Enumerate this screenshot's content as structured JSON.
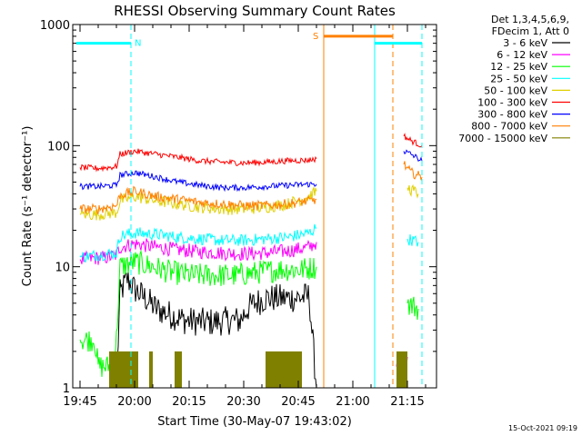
{
  "chart_data": {
    "type": "line",
    "title": "RHESSI Observing Summary Count Rates",
    "xlabel": "Start Time (30-May-07 19:43:02)",
    "ylabel": "Count Rate (s⁻¹ detector⁻¹)",
    "yscale": "log",
    "ylim": [
      1,
      1000
    ],
    "xlim": [
      "19:43",
      "21:23"
    ],
    "grid": false,
    "x_ticks": [
      "19:45",
      "20:00",
      "20:15",
      "20:30",
      "20:45",
      "21:00",
      "21:15"
    ],
    "y_ticks": [
      "1",
      "10",
      "100",
      "1000"
    ],
    "legend": {
      "placement": "right-outside",
      "header": [
        "Det 1,3,4,5,6,9,",
        "FDecim 1, Att 0"
      ],
      "entries": [
        {
          "label": "3 - 6 keV",
          "color": "#000000"
        },
        {
          "label": "6 - 12 keV",
          "color": "#ff00ff"
        },
        {
          "label": "12 - 25 keV",
          "color": "#00ff00"
        },
        {
          "label": "25 - 50 keV",
          "color": "#00ffff"
        },
        {
          "label": "50 - 100 keV",
          "color": "#e0d000"
        },
        {
          "label": "100 - 300 keV",
          "color": "#ff0000"
        },
        {
          "label": "300 - 800 keV",
          "color": "#0000ff"
        },
        {
          "label": "800 - 7000 keV",
          "color": "#ff8000"
        },
        {
          "label": "7000 - 15000 keV",
          "color": "#808000"
        }
      ]
    },
    "flags": [
      {
        "label": "N",
        "color": "#00ffff",
        "y": 700,
        "start": "19:44",
        "end": "19:59"
      },
      {
        "label": "S",
        "color": "#ff8000",
        "y": 800,
        "start": "20:52",
        "end": "21:11"
      },
      {
        "label": "",
        "color": "#00ffff",
        "y": 700,
        "start": "21:06",
        "end": "21:19"
      }
    ],
    "markers": [
      {
        "color": "#00ffff",
        "style": "dashed",
        "time": "19:59"
      },
      {
        "color": "#ff8000",
        "style": "solid",
        "time": "20:52"
      },
      {
        "color": "#00ffff",
        "style": "solid",
        "time": "21:06"
      },
      {
        "color": "#ff8000",
        "style": "dashed",
        "time": "21:11"
      },
      {
        "color": "#00ffff",
        "style": "dashed",
        "time": "21:19"
      }
    ],
    "series": [
      {
        "label": "3 - 6 keV",
        "color": "#000000",
        "noise": 0.12,
        "segments": [
          [
            [
              "19:55",
              1.0
            ],
            [
              "19:56",
              6.0
            ],
            [
              "19:58",
              8.0
            ],
            [
              "20:00",
              6.5
            ],
            [
              "20:03",
              5.5
            ],
            [
              "20:06",
              4.5
            ],
            [
              "20:10",
              4.0
            ],
            [
              "20:14",
              3.6
            ],
            [
              "20:18",
              3.5
            ],
            [
              "20:22",
              3.5
            ],
            [
              "20:26",
              3.6
            ],
            [
              "20:29",
              3.6
            ],
            [
              "20:31",
              4.5
            ],
            [
              "20:33",
              5.0
            ],
            [
              "20:36",
              5.5
            ],
            [
              "20:40",
              5.5
            ],
            [
              "20:44",
              5.5
            ],
            [
              "20:48",
              5.7
            ],
            [
              "20:50",
              1.0
            ]
          ]
        ]
      },
      {
        "label": "6 - 12 keV",
        "color": "#ff00ff",
        "noise": 0.06,
        "segments": [
          [
            [
              "19:45",
              11.5
            ],
            [
              "19:53",
              12.0
            ],
            [
              "19:55",
              12.5
            ],
            [
              "19:56",
              14.5
            ],
            [
              "20:00",
              15.5
            ],
            [
              "20:06",
              14.5
            ],
            [
              "20:12",
              13.8
            ],
            [
              "20:18",
              13.3
            ],
            [
              "20:24",
              13.0
            ],
            [
              "20:30",
              12.8
            ],
            [
              "20:36",
              13.0
            ],
            [
              "20:42",
              13.5
            ],
            [
              "20:48",
              14.5
            ],
            [
              "20:50",
              16.0
            ]
          ],
          [
            [
              "21:12",
              1.5
            ],
            [
              "21:15",
              1.8
            ]
          ]
        ]
      },
      {
        "label": "12 - 25 keV",
        "color": "#00ff00",
        "noise": 0.1,
        "segments": [
          [
            [
              "19:45",
              2.5
            ],
            [
              "19:49",
              2.5
            ],
            [
              "19:50",
              1.5
            ],
            [
              "19:54",
              1.5
            ],
            [
              "19:55",
              2.5
            ],
            [
              "19:56",
              10.0
            ],
            [
              "20:00",
              11.0
            ],
            [
              "20:05",
              10.0
            ],
            [
              "20:10",
              9.0
            ],
            [
              "20:16",
              8.5
            ],
            [
              "20:22",
              8.5
            ],
            [
              "20:28",
              8.5
            ],
            [
              "20:34",
              9.0
            ],
            [
              "20:40",
              9.5
            ],
            [
              "20:46",
              9.5
            ],
            [
              "20:50",
              10.0
            ]
          ],
          [
            [
              "21:15",
              5.0
            ],
            [
              "21:18",
              4.5
            ]
          ]
        ]
      },
      {
        "label": "25 - 50 keV",
        "color": "#00ffff",
        "noise": 0.05,
        "segments": [
          [
            [
              "19:45",
              12.0
            ],
            [
              "19:50",
              12.5
            ],
            [
              "19:55",
              13.0
            ],
            [
              "19:56",
              18.0
            ],
            [
              "20:00",
              19.0
            ],
            [
              "20:06",
              18.5
            ],
            [
              "20:12",
              17.5
            ],
            [
              "20:18",
              17.0
            ],
            [
              "20:24",
              16.5
            ],
            [
              "20:30",
              16.5
            ],
            [
              "20:36",
              17.0
            ],
            [
              "20:42",
              17.5
            ],
            [
              "20:48",
              19.0
            ],
            [
              "20:50",
              21.0
            ]
          ],
          [
            [
              "21:15",
              17.0
            ],
            [
              "21:18",
              16.0
            ]
          ]
        ]
      },
      {
        "label": "50 - 100 keV",
        "color": "#e0d000",
        "noise": 0.05,
        "segments": [
          [
            [
              "19:45",
              27.0
            ],
            [
              "19:50",
              27.0
            ],
            [
              "19:55",
              28.0
            ],
            [
              "19:56",
              35.0
            ],
            [
              "20:00",
              38.0
            ],
            [
              "20:06",
              35.0
            ],
            [
              "20:12",
              33.0
            ],
            [
              "20:18",
              31.0
            ],
            [
              "20:24",
              30.0
            ],
            [
              "20:30",
              30.0
            ],
            [
              "20:36",
              31.0
            ],
            [
              "20:42",
              33.0
            ],
            [
              "20:48",
              38.0
            ],
            [
              "20:50",
              42.0
            ]
          ],
          [
            [
              "21:15",
              45.0
            ],
            [
              "21:18",
              40.0
            ]
          ]
        ]
      },
      {
        "label": "100 - 300 keV",
        "color": "#ff0000",
        "noise": 0.025,
        "segments": [
          [
            [
              "19:45",
              66.0
            ],
            [
              "19:50",
              65.0
            ],
            [
              "19:55",
              67.0
            ],
            [
              "19:56",
              85.0
            ],
            [
              "20:00",
              90.0
            ],
            [
              "20:06",
              85.0
            ],
            [
              "20:12",
              80.0
            ],
            [
              "20:18",
              75.0
            ],
            [
              "20:24",
              73.0
            ],
            [
              "20:30",
              72.0
            ],
            [
              "20:36",
              73.0
            ],
            [
              "20:42",
              75.0
            ],
            [
              "20:48",
              76.0
            ],
            [
              "20:50",
              78.0
            ]
          ],
          [
            [
              "21:14",
              120.0
            ],
            [
              "21:16",
              110.0
            ],
            [
              "21:19",
              100.0
            ]
          ]
        ]
      },
      {
        "label": "300 - 800 keV",
        "color": "#0000ff",
        "noise": 0.025,
        "segments": [
          [
            [
              "19:45",
              46.0
            ],
            [
              "19:50",
              46.0
            ],
            [
              "19:55",
              47.0
            ],
            [
              "19:56",
              57.0
            ],
            [
              "20:00",
              60.0
            ],
            [
              "20:06",
              55.0
            ],
            [
              "20:12",
              50.0
            ],
            [
              "20:18",
              47.0
            ],
            [
              "20:24",
              45.0
            ],
            [
              "20:30",
              45.0
            ],
            [
              "20:36",
              46.0
            ],
            [
              "20:42",
              47.0
            ],
            [
              "20:48",
              48.0
            ],
            [
              "20:50",
              48.0
            ]
          ],
          [
            [
              "21:14",
              90.0
            ],
            [
              "21:16",
              85.0
            ],
            [
              "21:19",
              75.0
            ]
          ]
        ]
      },
      {
        "label": "800 - 7000 keV",
        "color": "#ff8000",
        "noise": 0.04,
        "segments": [
          [
            [
              "19:45",
              30.0
            ],
            [
              "19:50",
              30.0
            ],
            [
              "19:55",
              32.0
            ],
            [
              "19:56",
              39.0
            ],
            [
              "20:00",
              42.0
            ],
            [
              "20:06",
              38.0
            ],
            [
              "20:12",
              36.0
            ],
            [
              "20:18",
              34.0
            ],
            [
              "20:24",
              33.0
            ],
            [
              "20:30",
              32.0
            ],
            [
              "20:36",
              32.0
            ],
            [
              "20:42",
              33.0
            ],
            [
              "20:48",
              35.0
            ],
            [
              "20:50",
              36.0
            ]
          ],
          [
            [
              "21:14",
              70.0
            ],
            [
              "21:16",
              60.0
            ],
            [
              "21:19",
              55.0
            ]
          ]
        ]
      },
      {
        "label": "7000 - 15000 keV",
        "color": "#808000",
        "noise": 0,
        "segments": [
          [
            [
              "19:53",
              2.0
            ],
            [
              "20:01",
              2.0
            ]
          ],
          [
            [
              "20:04",
              2.0
            ],
            [
              "20:05",
              2.0
            ]
          ],
          [
            [
              "20:11",
              2.0
            ],
            [
              "20:13",
              2.0
            ]
          ],
          [
            [
              "20:36",
              2.0
            ],
            [
              "20:46",
              2.0
            ]
          ],
          [
            [
              "21:12",
              2.0
            ],
            [
              "21:15",
              2.0
            ]
          ]
        ]
      }
    ]
  },
  "footer": {
    "timestamp": "15-Oct-2021 09:19"
  }
}
